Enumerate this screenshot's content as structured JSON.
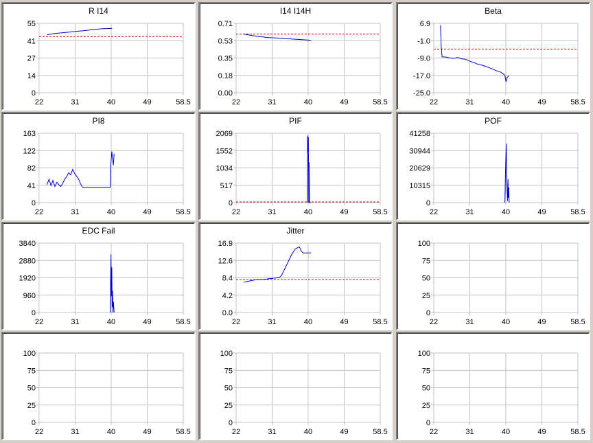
{
  "colors": {
    "background": "#d4d0c8",
    "grid": "#c0c0c0",
    "line": "#0000cc",
    "reference": "#cc0000"
  },
  "chart_data": [
    {
      "type": "line",
      "title": "R I14",
      "xticks": [
        "22",
        "31",
        "40",
        "49",
        "58.5"
      ],
      "xlim": [
        22,
        58.5
      ],
      "yticks": [
        "55",
        "41",
        "27",
        "14",
        "0"
      ],
      "ylim": [
        0,
        55
      ],
      "reference": 44.5,
      "series": [
        {
          "x": [
            24,
            26,
            28,
            30,
            32,
            34,
            36,
            38,
            40.5
          ],
          "y": [
            46,
            47,
            47.6,
            48.2,
            48.8,
            49.4,
            50.2,
            50.7,
            51
          ]
        }
      ]
    },
    {
      "type": "line",
      "title": "I14 I14H",
      "xticks": [
        "22",
        "31",
        "40",
        "49",
        "58.5"
      ],
      "xlim": [
        22,
        58.5
      ],
      "yticks": [
        "0.71",
        "0.53",
        "0.35",
        "0.18",
        "0.00"
      ],
      "ylim": [
        0,
        0.71
      ],
      "reference": 0.6,
      "series": [
        {
          "x": [
            24,
            26,
            28,
            30,
            32,
            34,
            36,
            38,
            40,
            41
          ],
          "y": [
            0.6,
            0.585,
            0.575,
            0.565,
            0.56,
            0.555,
            0.55,
            0.545,
            0.54,
            0.535
          ]
        }
      ]
    },
    {
      "type": "line",
      "title": "Beta",
      "xticks": [
        "22",
        "31",
        "40",
        "49",
        "58.5"
      ],
      "xlim": [
        22,
        58.5
      ],
      "yticks": [
        "6.9",
        "-1.0",
        "-9.0",
        "-17.0",
        "-25.0"
      ],
      "ylim": [
        -25,
        6.9
      ],
      "reference": -5,
      "series": [
        {
          "x": [
            23.7,
            23.9,
            24.1,
            25,
            26,
            27,
            28,
            29,
            30,
            31,
            32,
            33,
            34,
            35,
            36,
            37,
            38,
            39,
            39.5,
            40,
            40.3,
            40.6,
            41
          ],
          "y": [
            6,
            -4,
            -8.5,
            -8.6,
            -9,
            -9.2,
            -8.8,
            -9.4,
            -9.6,
            -10.4,
            -11,
            -11.8,
            -12.2,
            -12.8,
            -13.4,
            -14.2,
            -15,
            -15.6,
            -16.2,
            -17,
            -20,
            -18,
            -17.2
          ]
        }
      ]
    },
    {
      "type": "line",
      "title": "PI8",
      "xticks": [
        "22",
        "31",
        "40",
        "49",
        "58.5"
      ],
      "xlim": [
        22,
        58.5
      ],
      "yticks": [
        "163",
        "122",
        "82",
        "41",
        "0"
      ],
      "ylim": [
        0,
        163
      ],
      "reference": null,
      "series": [
        {
          "x": [
            24,
            24.5,
            25,
            25.5,
            26,
            26.5,
            27,
            27.5,
            28,
            28.5,
            29,
            29.5,
            30,
            30.5,
            31,
            31.5,
            32,
            32.5,
            33,
            34,
            36,
            38,
            39.5,
            40,
            40.1,
            40.4,
            40.8,
            41
          ],
          "y": [
            42,
            55,
            40,
            52,
            38,
            48,
            42,
            38,
            46,
            55,
            62,
            70,
            65,
            78,
            68,
            62,
            55,
            44,
            36,
            36,
            36,
            36,
            36,
            36,
            82,
            120,
            88,
            115
          ]
        }
      ]
    },
    {
      "type": "line",
      "title": "PIF",
      "xticks": [
        "22",
        "31",
        "40",
        "49",
        "58.5"
      ],
      "xlim": [
        22,
        58.5
      ],
      "yticks": [
        "2069",
        "1552",
        "1034",
        "517",
        "0"
      ],
      "ylim": [
        0,
        2069
      ],
      "reference": 20,
      "series": [
        {
          "x": [
            40,
            40.1,
            40.2,
            40.3,
            40.4,
            40.5,
            40.6,
            40.8,
            41
          ],
          "y": [
            0,
            2000,
            1500,
            1950,
            0,
            1200,
            0,
            0,
            0
          ]
        }
      ]
    },
    {
      "type": "line",
      "title": "POF",
      "xticks": [
        "22",
        "31",
        "40",
        "49",
        "58.5"
      ],
      "xlim": [
        22,
        58.5
      ],
      "yticks": [
        "41258",
        "30944",
        "20629",
        "10315",
        "0"
      ],
      "ylim": [
        0,
        41258
      ],
      "reference": null,
      "series": [
        {
          "x": [
            40,
            40.2,
            40.35,
            40.5,
            40.6,
            40.7,
            40.8,
            40.9,
            41,
            41.1
          ],
          "y": [
            0,
            22000,
            35000,
            16000,
            6000,
            1000,
            14000,
            3000,
            9000,
            0
          ]
        }
      ]
    },
    {
      "type": "line",
      "title": "EDC Fail",
      "xticks": [
        "22",
        "31",
        "40",
        "49",
        "58.5"
      ],
      "xlim": [
        22,
        58.5
      ],
      "yticks": [
        "3840",
        "2880",
        "1920",
        "960",
        "0"
      ],
      "ylim": [
        0,
        3840
      ],
      "reference": null,
      "series": [
        {
          "x": [
            40,
            40.1,
            40.2,
            40.3,
            40.4,
            40.5,
            40.6,
            40.7,
            40.8,
            41
          ],
          "y": [
            0,
            1500,
            3200,
            900,
            2500,
            300,
            1200,
            0,
            600,
            0
          ]
        }
      ]
    },
    {
      "type": "line",
      "title": "Jitter",
      "xticks": [
        "22",
        "31",
        "40",
        "49",
        "58.5"
      ],
      "xlim": [
        22,
        58.5
      ],
      "yticks": [
        "16.9",
        "12.6",
        "8.4",
        "4.2",
        "0.0"
      ],
      "ylim": [
        0,
        16.9
      ],
      "reference": 8,
      "series": [
        {
          "x": [
            24,
            25,
            26,
            27,
            28,
            29,
            30,
            31,
            32,
            33,
            33.5,
            34,
            34.5,
            35,
            35.5,
            36,
            37,
            38,
            38.5,
            39,
            40,
            41
          ],
          "y": [
            7.4,
            7.6,
            7.8,
            8,
            8,
            8,
            8.2,
            8.3,
            8.4,
            8.6,
            9,
            10,
            11,
            12,
            13,
            14,
            15.5,
            16,
            15,
            14.5,
            14.5,
            14.5
          ]
        }
      ]
    },
    {
      "type": "line",
      "title": "",
      "xticks": [
        "22",
        "31",
        "40",
        "49",
        "58.5"
      ],
      "xlim": [
        22,
        58.5
      ],
      "yticks": [
        "100",
        "75",
        "50",
        "25",
        "0"
      ],
      "ylim": [
        0,
        100
      ],
      "reference": null,
      "series": []
    },
    {
      "type": "line",
      "title": "",
      "xticks": [
        "22",
        "31",
        "40",
        "49",
        "58.5"
      ],
      "xlim": [
        22,
        58.5
      ],
      "yticks": [
        "100",
        "75",
        "50",
        "25",
        "0"
      ],
      "ylim": [
        0,
        100
      ],
      "reference": null,
      "series": []
    },
    {
      "type": "line",
      "title": "",
      "xticks": [
        "22",
        "31",
        "40",
        "49",
        "58.5"
      ],
      "xlim": [
        22,
        58.5
      ],
      "yticks": [
        "100",
        "75",
        "50",
        "25",
        "0"
      ],
      "ylim": [
        0,
        100
      ],
      "reference": null,
      "series": []
    },
    {
      "type": "line",
      "title": "",
      "xticks": [
        "22",
        "31",
        "40",
        "49",
        "58.5"
      ],
      "xlim": [
        22,
        58.5
      ],
      "yticks": [
        "100",
        "75",
        "50",
        "25",
        "0"
      ],
      "ylim": [
        0,
        100
      ],
      "reference": null,
      "series": []
    }
  ]
}
